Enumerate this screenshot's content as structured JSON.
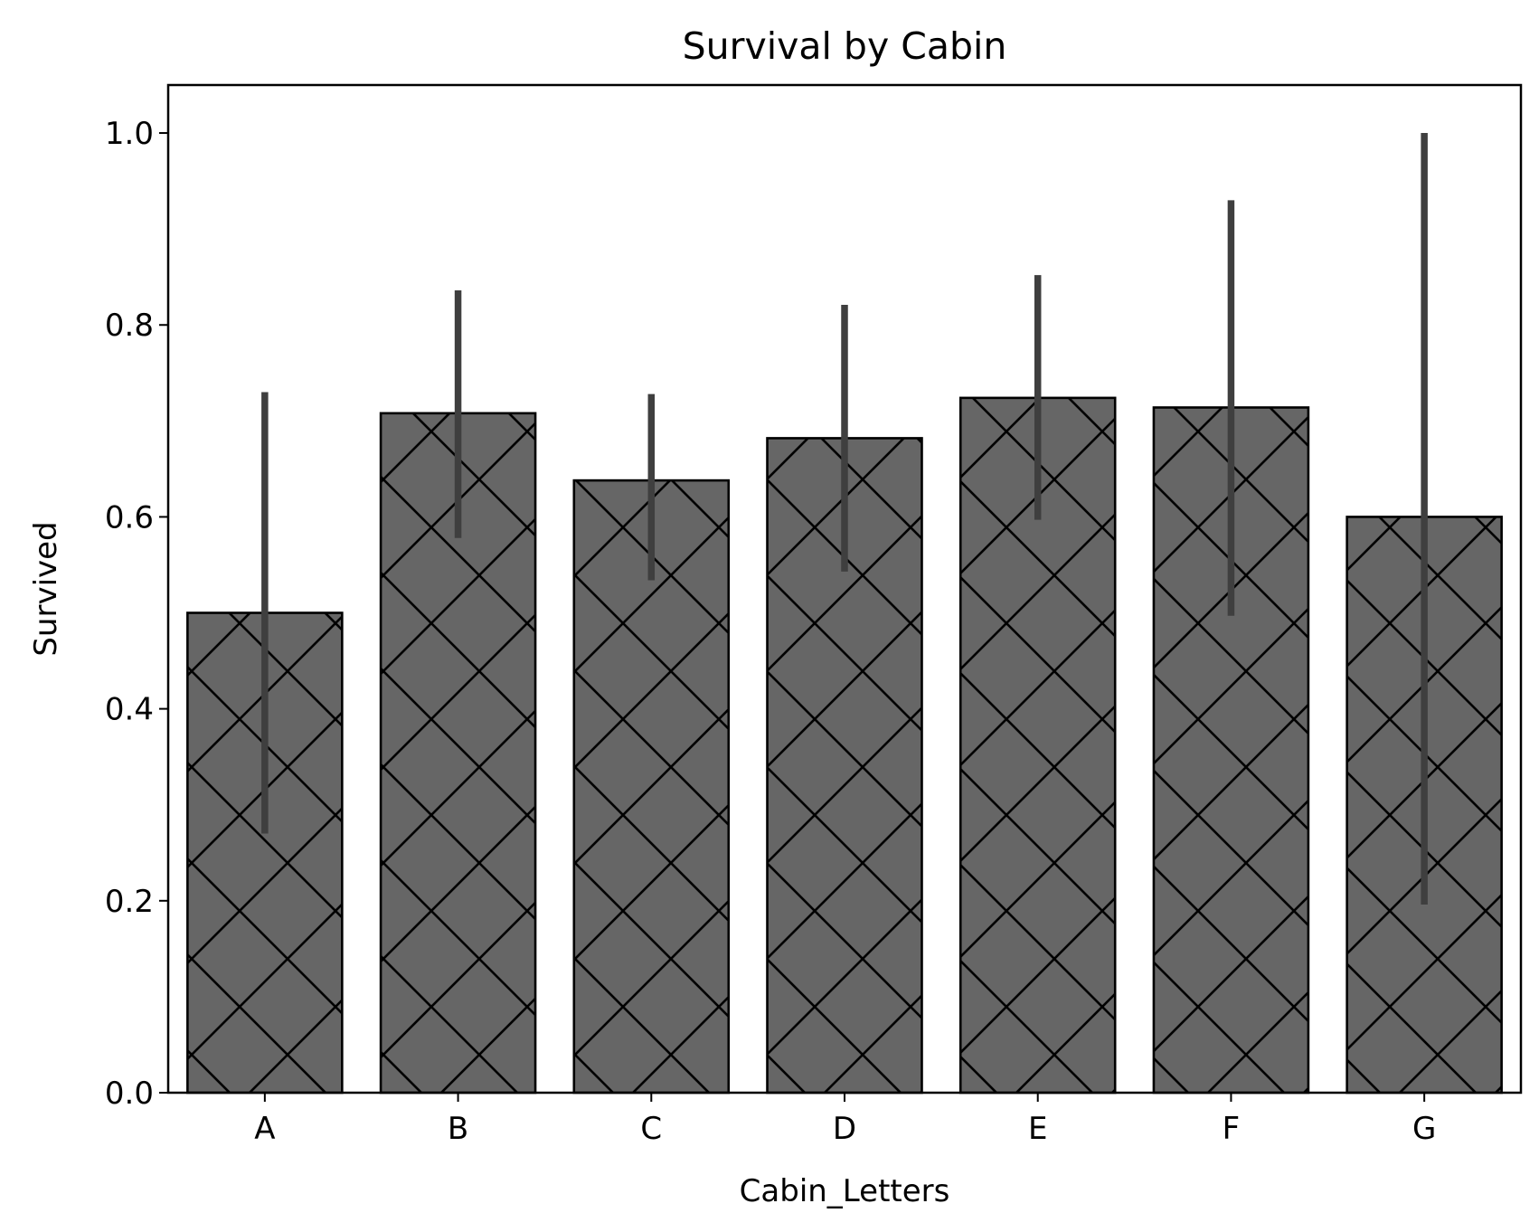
{
  "chart_data": {
    "type": "bar",
    "title": "Survival by Cabin",
    "xlabel": "Cabin_Letters",
    "ylabel": "Survived",
    "categories": [
      "A",
      "B",
      "C",
      "D",
      "E",
      "F",
      "G"
    ],
    "values": [
      0.5,
      0.708,
      0.638,
      0.682,
      0.724,
      0.714,
      0.6
    ],
    "error_low": [
      0.27,
      0.578,
      0.534,
      0.543,
      0.597,
      0.497,
      0.196
    ],
    "error_high": [
      0.73,
      0.836,
      0.728,
      0.821,
      0.852,
      0.93,
      1.0
    ],
    "ylim": [
      0,
      1.05
    ],
    "yticks": [
      0.0,
      0.2,
      0.4,
      0.6,
      0.8,
      1.0
    ],
    "ytick_labels": [
      "0.0",
      "0.2",
      "0.4",
      "0.6",
      "0.8",
      "1.0"
    ],
    "grid": false,
    "bar_fill": "#666666",
    "bar_edge": "#000000",
    "bar_hatch": "diagonal-cross",
    "error_color": "#3f3f3f"
  }
}
